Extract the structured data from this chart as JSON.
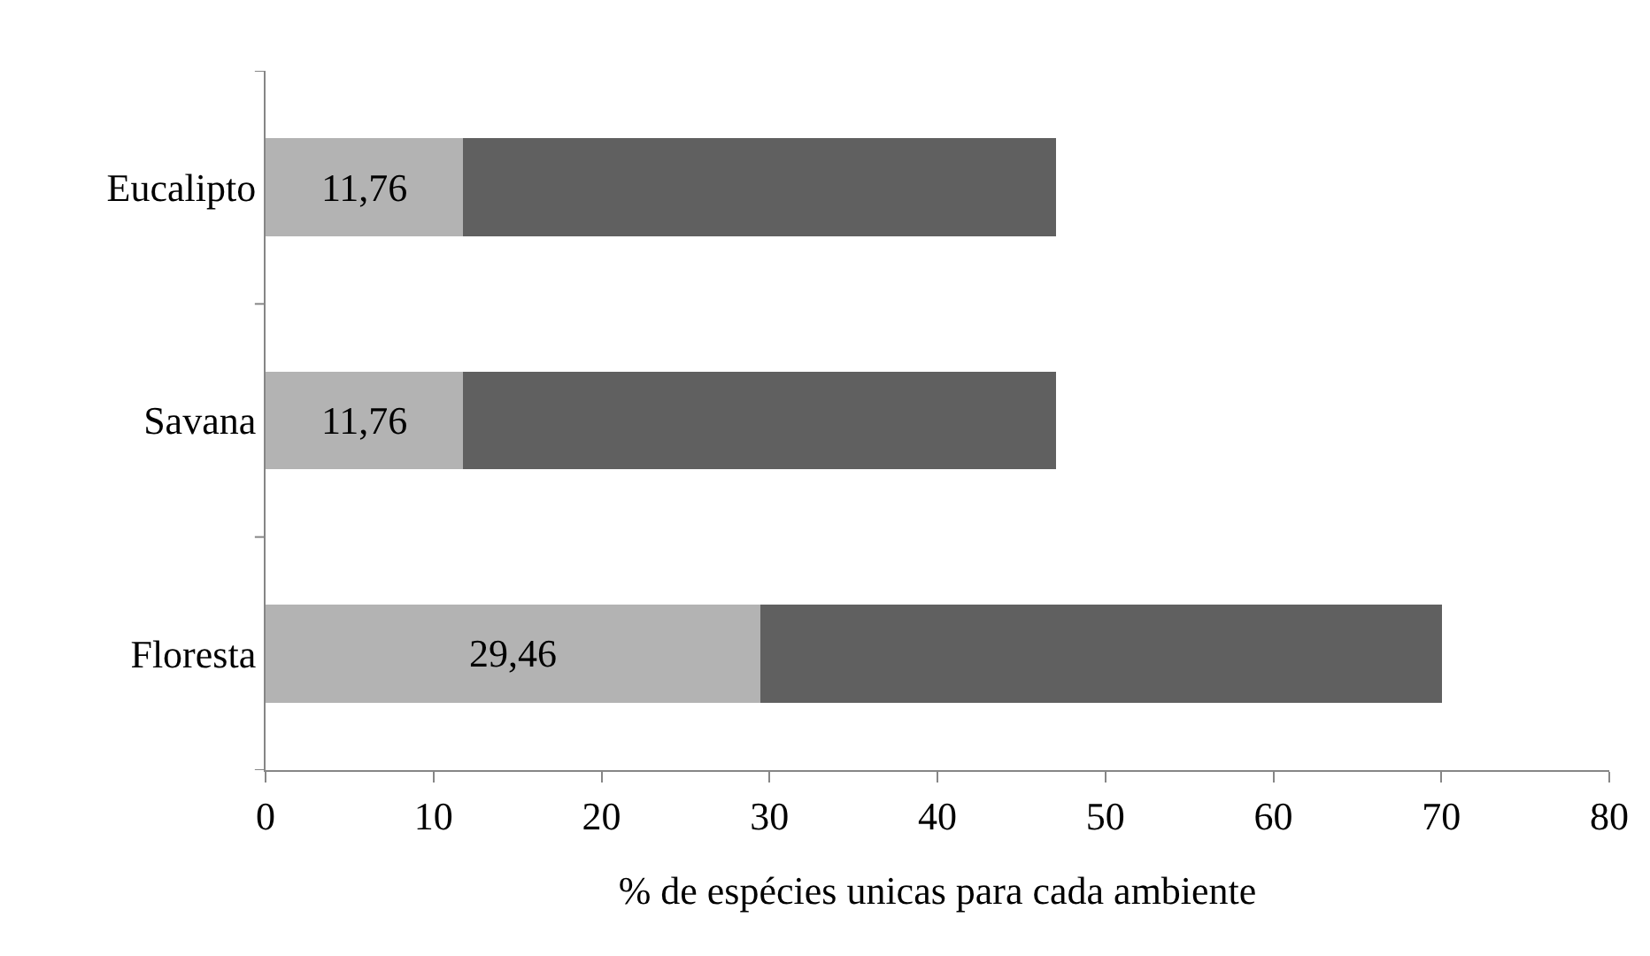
{
  "chart_data": {
    "type": "bar",
    "orientation": "horizontal",
    "stacked": true,
    "xlabel": "% de espécies unicas para cada ambiente",
    "categories": [
      "Eucalipto",
      "Savana",
      "Floresta"
    ],
    "series": [
      {
        "color": "#b3b3b3",
        "values": [
          11.76,
          11.76,
          29.46
        ],
        "value_labels": [
          "11,76",
          "11,76",
          "29,46"
        ]
      },
      {
        "color": "#606060",
        "values": [
          35.3,
          35.3,
          40.6
        ]
      }
    ],
    "xlim": [
      0,
      80
    ],
    "xticks": [
      0,
      10,
      20,
      30,
      40,
      50,
      60,
      70,
      80
    ],
    "legend": false
  }
}
